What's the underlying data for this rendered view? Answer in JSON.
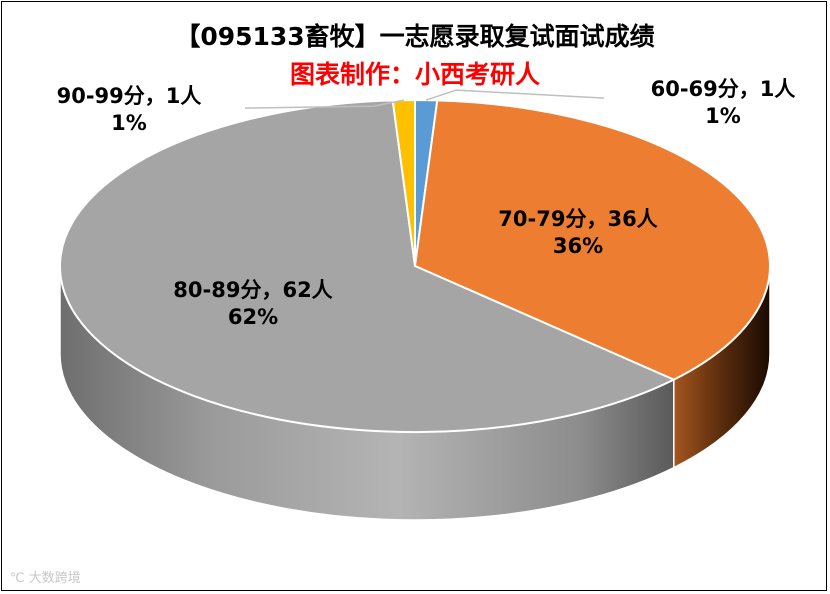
{
  "chart_data": {
    "type": "pie",
    "title": "【095133畜牧】一志愿录取复试面试成绩",
    "subtitle": "图表制作：小西考研人",
    "slices": [
      {
        "label": "60-69分，1人",
        "value": 1,
        "percent": "1%",
        "color": "#5b9bd5"
      },
      {
        "label": "70-79分，36人",
        "value": 36,
        "percent": "36%",
        "color": "#ed7d31"
      },
      {
        "label": "80-89分，62人",
        "value": 62,
        "percent": "62%",
        "color": "#a5a5a5"
      },
      {
        "label": "90-99分，1人",
        "value": 1,
        "percent": "1%",
        "color": "#ffc000"
      }
    ]
  },
  "watermark": "大数跨境"
}
